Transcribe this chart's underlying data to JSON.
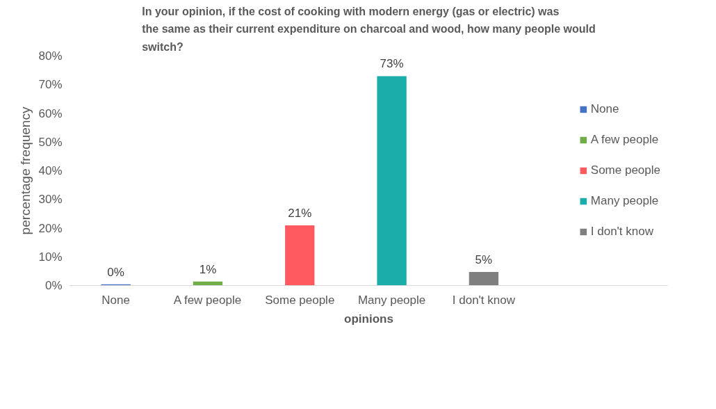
{
  "chart_data": {
    "type": "bar",
    "title": "In your opinion, if the cost of cooking with modern energy (gas or electric) was the same as their current expenditure on charcoal and wood, how many people would switch?",
    "xlabel": "opinions",
    "ylabel": "percentage frequency",
    "categories": [
      "None",
      "A few people",
      "Some people",
      "Many people",
      "I don't know"
    ],
    "series": [
      {
        "name": "None",
        "color": "#4472c4",
        "values": [
          0.4,
          null,
          null,
          null,
          null
        ],
        "value_labels": [
          "0%",
          null,
          null,
          null,
          null
        ]
      },
      {
        "name": "A few people",
        "color": "#70ad47",
        "values": [
          null,
          1.4,
          null,
          null,
          null
        ],
        "value_labels": [
          null,
          "1%",
          null,
          null,
          null
        ]
      },
      {
        "name": "Some people",
        "color": "#ff5a5f",
        "values": [
          null,
          null,
          21,
          null,
          null
        ],
        "value_labels": [
          null,
          null,
          "21%",
          null,
          null
        ]
      },
      {
        "name": "Many people",
        "color": "#1aadaa",
        "values": [
          null,
          null,
          null,
          73,
          null
        ],
        "value_labels": [
          null,
          null,
          null,
          "73%",
          null
        ]
      },
      {
        "name": "I don't know",
        "color": "#7f7f7f",
        "values": [
          null,
          null,
          null,
          null,
          4.7
        ],
        "value_labels": [
          null,
          null,
          null,
          null,
          "5%"
        ]
      }
    ],
    "ylim": [
      0,
      80
    ],
    "yticks": [
      {
        "value": 0,
        "label": "0%"
      },
      {
        "value": 10,
        "label": "10%"
      },
      {
        "value": 20,
        "label": "20%"
      },
      {
        "value": 30,
        "label": "30%"
      },
      {
        "value": 40,
        "label": "40%"
      },
      {
        "value": 50,
        "label": "50%"
      },
      {
        "value": 60,
        "label": "60%"
      },
      {
        "value": 70,
        "label": "70%"
      },
      {
        "value": 80,
        "label": "80%"
      }
    ],
    "legend": "right"
  }
}
